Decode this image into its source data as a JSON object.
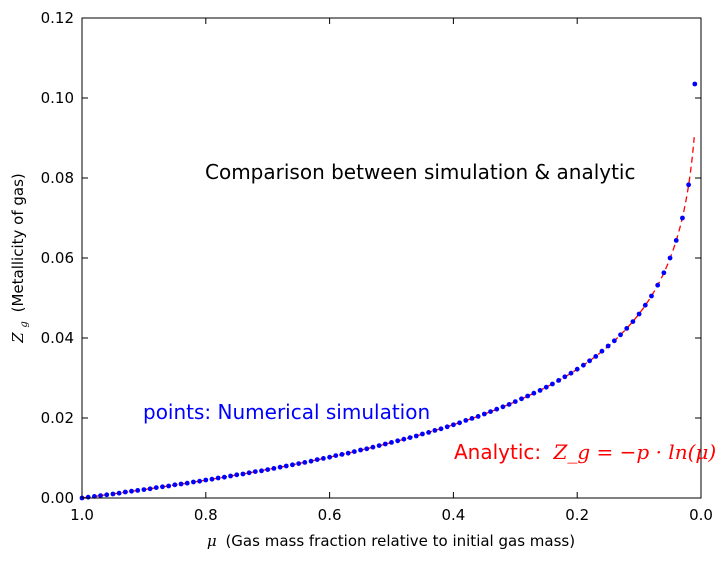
{
  "chart_data": {
    "type": "scatter",
    "title": "",
    "xlabel_symbol": "μ",
    "xlabel": "(Gas mass fraction relative to initial gas mass)",
    "ylabel_symbol": "Z",
    "ylabel_subscript": "g",
    "ylabel": "(Metallicity of gas)",
    "xlim": [
      1.0,
      0.0
    ],
    "ylim": [
      0.0,
      0.12
    ],
    "x_inverted": true,
    "xticks": [
      "1.0",
      "0.8",
      "0.6",
      "0.4",
      "0.2",
      "0.0"
    ],
    "yticks": [
      "0.00",
      "0.02",
      "0.04",
      "0.06",
      "0.08",
      "0.10",
      "0.12"
    ],
    "grid": false,
    "annotations": {
      "comparison": "Comparison between simulation & analytic",
      "points": "points: Numerical simulation",
      "analytic_prefix": "Analytic:",
      "analytic_formula": "Z_g = −p · ln(μ)"
    },
    "yield_p": 0.02,
    "series": [
      {
        "style": "blue-points",
        "color": "#0000ff",
        "x": [
          1.0,
          0.99,
          0.98,
          0.97,
          0.96,
          0.95,
          0.94,
          0.93,
          0.92,
          0.91,
          0.9,
          0.89,
          0.88,
          0.87,
          0.86,
          0.85,
          0.84,
          0.83,
          0.82,
          0.81,
          0.8,
          0.79,
          0.78,
          0.77,
          0.76,
          0.75,
          0.74,
          0.73,
          0.72,
          0.71,
          0.7,
          0.69,
          0.68,
          0.67,
          0.66,
          0.65,
          0.64,
          0.63,
          0.62,
          0.61,
          0.6,
          0.59,
          0.58,
          0.57,
          0.56,
          0.55,
          0.54,
          0.53,
          0.52,
          0.51,
          0.5,
          0.49,
          0.48,
          0.47,
          0.46,
          0.45,
          0.44,
          0.43,
          0.42,
          0.41,
          0.4,
          0.39,
          0.38,
          0.37,
          0.36,
          0.35,
          0.34,
          0.33,
          0.32,
          0.31,
          0.3,
          0.29,
          0.28,
          0.27,
          0.26,
          0.25,
          0.24,
          0.23,
          0.22,
          0.21,
          0.2,
          0.19,
          0.18,
          0.17,
          0.16,
          0.15,
          0.14,
          0.13,
          0.12,
          0.11,
          0.1,
          0.09,
          0.08,
          0.07,
          0.06,
          0.05,
          0.04,
          0.03,
          0.02,
          0.01
        ],
        "y": [
          0.0,
          0.0002,
          0.0004,
          0.0006,
          0.0008,
          0.001,
          0.0012,
          0.0015,
          0.0017,
          0.0019,
          0.0021,
          0.0023,
          0.0026,
          0.0028,
          0.003,
          0.0033,
          0.0035,
          0.0037,
          0.004,
          0.0042,
          0.0045,
          0.0047,
          0.005,
          0.0052,
          0.0055,
          0.0058,
          0.006,
          0.0063,
          0.0066,
          0.0068,
          0.0071,
          0.0074,
          0.0077,
          0.008,
          0.0083,
          0.0086,
          0.0089,
          0.0092,
          0.0096,
          0.0099,
          0.0102,
          0.0106,
          0.0109,
          0.0112,
          0.0116,
          0.012,
          0.0123,
          0.0127,
          0.0131,
          0.0135,
          0.0139,
          0.0143,
          0.0147,
          0.0151,
          0.0155,
          0.016,
          0.0164,
          0.0169,
          0.0173,
          0.0178,
          0.0183,
          0.0188,
          0.0194,
          0.0199,
          0.0204,
          0.021,
          0.0216,
          0.0222,
          0.0228,
          0.0234,
          0.0241,
          0.0248,
          0.0255,
          0.0262,
          0.0269,
          0.0277,
          0.0285,
          0.0294,
          0.0303,
          0.0312,
          0.0322,
          0.0332,
          0.0343,
          0.0354,
          0.0367,
          0.038,
          0.0393,
          0.0408,
          0.0424,
          0.0441,
          0.046,
          0.0482,
          0.0505,
          0.0532,
          0.0563,
          0.06,
          0.0644,
          0.07,
          0.0783,
          0.1035
        ]
      },
      {
        "style": "red-dashed-line",
        "color": "#ff0000",
        "formula": "y = -p * ln(x)"
      }
    ]
  }
}
